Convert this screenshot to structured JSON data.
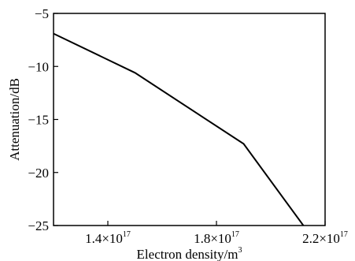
{
  "chart_data": {
    "type": "line",
    "xlabel": "Electron density/m",
    "xlabel_sup": "3",
    "ylabel": "Attenuation/dB",
    "xlim": [
      1.2e+17,
      2.2e+17
    ],
    "ylim": [
      -25,
      -5
    ],
    "x_ticks": [
      {
        "value": 1.4e+17,
        "mantissa": "1.4×10",
        "exp": "17"
      },
      {
        "value": 1.8e+17,
        "mantissa": "1.8×10",
        "exp": "17"
      },
      {
        "value": 2.2e+17,
        "mantissa": "2.2×10",
        "exp": "17"
      }
    ],
    "y_ticks": [
      {
        "value": -5,
        "label": "−5"
      },
      {
        "value": -10,
        "label": "−10"
      },
      {
        "value": -15,
        "label": "−15"
      },
      {
        "value": -20,
        "label": "−20"
      },
      {
        "value": -25,
        "label": "−25"
      }
    ],
    "grid": false,
    "series": [
      {
        "points": [
          {
            "x": 1.2e+17,
            "y": -6.9
          },
          {
            "x": 1.5e+17,
            "y": -10.6
          },
          {
            "x": 1.9e+17,
            "y": -17.3
          },
          {
            "x": 2.12e+17,
            "y": -25
          }
        ]
      }
    ]
  }
}
